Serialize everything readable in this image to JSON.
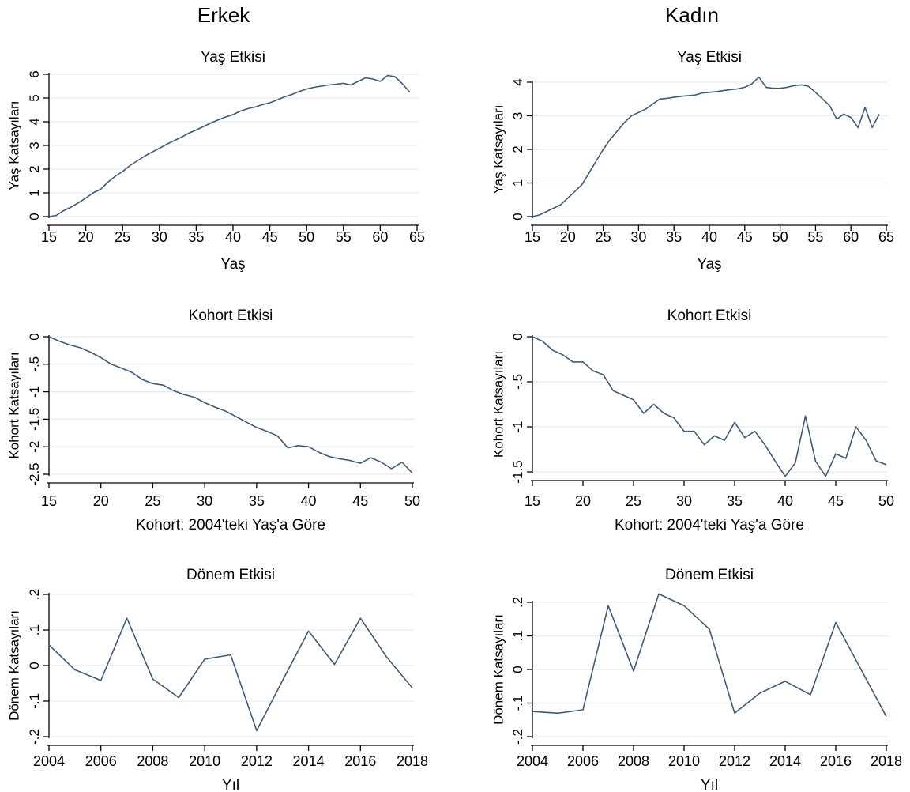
{
  "columns": [
    "Erkek",
    "Kadın"
  ],
  "charts": [
    {
      "title": "Yaş Etkisi",
      "xlabel": "Yaş",
      "ylabel": "Yaş Katsayıları",
      "xlim": [
        15,
        65
      ],
      "ylim": [
        0,
        6
      ],
      "xticks": [
        "15",
        "20",
        "25",
        "30",
        "35",
        "40",
        "45",
        "50",
        "55",
        "60",
        "65"
      ],
      "yticks": [
        "0",
        "1",
        "2",
        "3",
        "4",
        "5",
        "6"
      ]
    },
    {
      "title": "Yaş Etkisi",
      "xlabel": "Yaş",
      "ylabel": "Yaş Katsayıları",
      "xlim": [
        15,
        65
      ],
      "ylim": [
        0,
        4
      ],
      "xticks": [
        "15",
        "20",
        "25",
        "30",
        "35",
        "40",
        "45",
        "50",
        "55",
        "60",
        "65"
      ],
      "yticks": [
        "0",
        "1",
        "2",
        "3",
        "4"
      ]
    },
    {
      "title": "Kohort Etkisi",
      "xlabel": "Kohort: 2004'teki Yaş'a Göre",
      "ylabel": "Kohort Katsayıları",
      "xlim": [
        15,
        50
      ],
      "ylim": [
        -2.5,
        0
      ],
      "xticks": [
        "15",
        "20",
        "25",
        "30",
        "35",
        "40",
        "45",
        "50"
      ],
      "yticks": [
        "0",
        "-.5",
        "-1",
        "-1.5",
        "-2",
        "-2.5"
      ]
    },
    {
      "title": "Kohort Etkisi",
      "xlabel": "Kohort: 2004'teki Yaş'a Göre",
      "ylabel": "Kohort Katsayıları",
      "xlim": [
        15,
        50
      ],
      "ylim": [
        -1.5,
        0
      ],
      "xticks": [
        "15",
        "20",
        "25",
        "30",
        "35",
        "40",
        "45",
        "50"
      ],
      "yticks": [
        "0",
        "-.5",
        "-1",
        "-1.5"
      ]
    },
    {
      "title": "Dönem Etkisi",
      "xlabel": "Yıl",
      "ylabel": "Dönem Katsayıları",
      "xlim": [
        2004,
        2018
      ],
      "ylim": [
        -0.2,
        0.2
      ],
      "xticks": [
        "2004",
        "2006",
        "2008",
        "2010",
        "2012",
        "2014",
        "2016",
        "2018"
      ],
      "yticks": [
        "-.2",
        "-.1",
        "0",
        ".1",
        ".2"
      ]
    },
    {
      "title": "Dönem Etkisi",
      "xlabel": "Yıl",
      "ylabel": "Dönem Katsayıları",
      "xlim": [
        2004,
        2018
      ],
      "ylim": [
        -0.2,
        0.2
      ],
      "xticks": [
        "2004",
        "2006",
        "2008",
        "2010",
        "2012",
        "2014",
        "2016",
        "2018"
      ],
      "yticks": [
        "-.2",
        "-.1",
        "0",
        ".1",
        ".2"
      ]
    }
  ],
  "chart_data": [
    {
      "type": "line",
      "title": "Yaş Etkisi",
      "xlabel": "Yaş",
      "ylabel": "Yaş Katsayıları",
      "xlim": [
        15,
        65
      ],
      "ylim": [
        0,
        6
      ],
      "grid": true,
      "x": [
        15,
        16,
        17,
        18,
        19,
        20,
        21,
        22,
        23,
        24,
        25,
        26,
        27,
        28,
        29,
        30,
        31,
        32,
        33,
        34,
        35,
        36,
        37,
        38,
        39,
        40,
        41,
        42,
        43,
        44,
        45,
        46,
        47,
        48,
        49,
        50,
        51,
        52,
        53,
        54,
        55,
        56,
        57,
        58,
        59,
        60,
        61,
        62,
        63,
        64
      ],
      "y": [
        0,
        0.05,
        0.25,
        0.4,
        0.58,
        0.78,
        1.0,
        1.15,
        1.45,
        1.7,
        1.9,
        2.15,
        2.35,
        2.55,
        2.72,
        2.88,
        3.05,
        3.2,
        3.35,
        3.52,
        3.65,
        3.8,
        3.95,
        4.08,
        4.2,
        4.3,
        4.45,
        4.55,
        4.62,
        4.72,
        4.8,
        4.92,
        5.05,
        5.15,
        5.28,
        5.38,
        5.45,
        5.5,
        5.55,
        5.58,
        5.62,
        5.55,
        5.7,
        5.85,
        5.8,
        5.7,
        5.95,
        5.9,
        5.6,
        5.25
      ]
    },
    {
      "type": "line",
      "title": "Yaş Etkisi",
      "xlabel": "Yaş",
      "ylabel": "Yaş Katsayıları",
      "xlim": [
        15,
        65
      ],
      "ylim": [
        0,
        4
      ],
      "grid": true,
      "x": [
        15,
        16,
        17,
        18,
        19,
        20,
        21,
        22,
        23,
        24,
        25,
        26,
        27,
        28,
        29,
        30,
        31,
        32,
        33,
        34,
        35,
        36,
        37,
        38,
        39,
        40,
        41,
        42,
        43,
        44,
        45,
        46,
        47,
        48,
        49,
        50,
        51,
        52,
        53,
        54,
        55,
        56,
        57,
        58,
        59,
        60,
        61,
        62,
        63,
        64
      ],
      "y": [
        0,
        0.05,
        0.15,
        0.25,
        0.35,
        0.55,
        0.75,
        0.95,
        1.3,
        1.65,
        2.0,
        2.3,
        2.55,
        2.8,
        3.0,
        3.1,
        3.2,
        3.35,
        3.5,
        3.52,
        3.55,
        3.58,
        3.6,
        3.62,
        3.68,
        3.7,
        3.72,
        3.75,
        3.78,
        3.8,
        3.85,
        3.95,
        4.15,
        3.85,
        3.82,
        3.82,
        3.85,
        3.9,
        3.92,
        3.88,
        3.7,
        3.5,
        3.3,
        2.9,
        3.05,
        2.95,
        2.65,
        3.25,
        2.65,
        3.05
      ]
    },
    {
      "type": "line",
      "title": "Kohort Etkisi",
      "xlabel": "Kohort: 2004'teki Yaş'a Göre",
      "ylabel": "Kohort Katsayıları",
      "xlim": [
        15,
        50
      ],
      "ylim": [
        -2.5,
        0
      ],
      "grid": true,
      "x": [
        15,
        16,
        17,
        18,
        19,
        20,
        21,
        22,
        23,
        24,
        25,
        26,
        27,
        28,
        29,
        30,
        31,
        32,
        33,
        34,
        35,
        36,
        37,
        38,
        39,
        40,
        41,
        42,
        43,
        44,
        45,
        46,
        47,
        48,
        49,
        50
      ],
      "y": [
        0,
        -0.08,
        -0.15,
        -0.2,
        -0.28,
        -0.38,
        -0.5,
        -0.57,
        -0.65,
        -0.78,
        -0.85,
        -0.88,
        -0.98,
        -1.05,
        -1.1,
        -1.2,
        -1.28,
        -1.35,
        -1.45,
        -1.55,
        -1.65,
        -1.72,
        -1.8,
        -2.02,
        -1.98,
        -2.0,
        -2.1,
        -2.18,
        -2.22,
        -2.25,
        -2.3,
        -2.2,
        -2.28,
        -2.4,
        -2.28,
        -2.48
      ]
    },
    {
      "type": "line",
      "title": "Kohort Etkisi",
      "xlabel": "Kohort: 2004'teki Yaş'a Göre",
      "ylabel": "Kohort Katsayıları",
      "xlim": [
        15,
        50
      ],
      "ylim": [
        -1.5,
        0
      ],
      "grid": true,
      "x": [
        15,
        16,
        17,
        18,
        19,
        20,
        21,
        22,
        23,
        24,
        25,
        26,
        27,
        28,
        29,
        30,
        31,
        32,
        33,
        34,
        35,
        36,
        37,
        38,
        39,
        40,
        41,
        42,
        43,
        44,
        45,
        46,
        47,
        48,
        49,
        50
      ],
      "y": [
        0,
        -0.05,
        -0.15,
        -0.2,
        -0.28,
        -0.28,
        -0.38,
        -0.42,
        -0.6,
        -0.65,
        -0.7,
        -0.85,
        -0.75,
        -0.85,
        -0.9,
        -1.05,
        -1.05,
        -1.2,
        -1.1,
        -1.15,
        -0.95,
        -1.12,
        -1.05,
        -1.2,
        -1.38,
        -1.55,
        -1.4,
        -0.88,
        -1.38,
        -1.55,
        -1.3,
        -1.35,
        -1.0,
        -1.15,
        -1.38,
        -1.42
      ]
    },
    {
      "type": "line",
      "title": "Dönem Etkisi",
      "xlabel": "Yıl",
      "ylabel": "Dönem Katsayıları",
      "xlim": [
        2004,
        2018
      ],
      "ylim": [
        -0.2,
        0.2
      ],
      "grid": true,
      "x": [
        2004,
        2005,
        2006,
        2007,
        2008,
        2009,
        2010,
        2011,
        2012,
        2013,
        2014,
        2015,
        2016,
        2017,
        2018
      ],
      "y": [
        0.058,
        -0.012,
        -0.042,
        0.133,
        -0.038,
        -0.09,
        0.018,
        0.03,
        -0.183,
        -0.042,
        0.097,
        0.003,
        0.133,
        0.025,
        -0.063
      ]
    },
    {
      "type": "line",
      "title": "Dönem Etkisi",
      "xlabel": "Yıl",
      "ylabel": "Dönem Katsayıları",
      "xlim": [
        2004,
        2018
      ],
      "ylim": [
        -0.2,
        0.2
      ],
      "grid": true,
      "x": [
        2004,
        2005,
        2006,
        2007,
        2008,
        2009,
        2010,
        2011,
        2012,
        2013,
        2014,
        2015,
        2016,
        2017,
        2018
      ],
      "y": [
        -0.125,
        -0.13,
        -0.12,
        0.19,
        -0.005,
        0.225,
        0.19,
        0.12,
        -0.13,
        -0.07,
        -0.035,
        -0.075,
        0.14,
        0.0,
        -0.14
      ]
    }
  ],
  "style": {
    "line_color": "#3e5a77",
    "grid_color": "#e6ebef",
    "axis_color": "#000000"
  }
}
